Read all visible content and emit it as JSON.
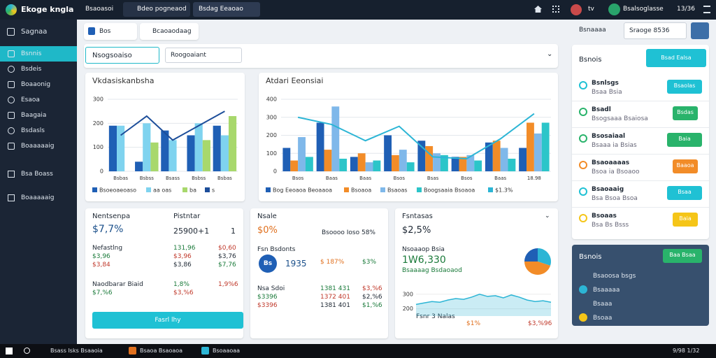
{
  "header": {
    "logo": "Ekoge kngla",
    "menu": "Bsaoasoi",
    "tabs": [
      "Bdeo pogneaod",
      "Bsdag Eeaoao"
    ],
    "icon_text": "tv",
    "user": "Bsalsoglasse",
    "time": "13/36"
  },
  "sidebar": {
    "title": "Sagnaa",
    "items": [
      "Bsnnis",
      "Bsdeis",
      "Boaaonig",
      "Esaoa",
      "Baagaia",
      "Bsdasls",
      "Boaaaaaig"
    ],
    "sections": [
      "Bsa Boass",
      "Boaaaaaig"
    ]
  },
  "toolbar": {
    "tabs": [
      "Bos",
      "Bcaoaodaag"
    ],
    "select": "Nsogsoaiso",
    "filter": "Roogoaiant"
  },
  "charts": [
    {
      "type": "bar",
      "title": "Vkdasiskanbsha",
      "categories": [
        "Bsbas",
        "Bsbss",
        "Bsass",
        "Bsbss",
        "Bsbas"
      ],
      "ylim": [
        0,
        300
      ],
      "yticks": [
        0,
        100,
        200,
        300
      ],
      "grid": true,
      "series": [
        {
          "name": "Bsoeoaeoaso",
          "color": "#1f5fb5",
          "values": [
            190,
            40,
            170,
            150,
            190
          ]
        },
        {
          "name": "aa oas",
          "color": "#7fd3ef",
          "values": [
            190,
            200,
            130,
            200,
            150
          ]
        },
        {
          "name": "ba",
          "color": "#a8d86c",
          "values": [
            null,
            120,
            null,
            130,
            230
          ]
        },
        {
          "name": "s",
          "type": "line",
          "color": "#1d4e9a",
          "values": [
            150,
            230,
            130,
            190,
            250
          ]
        }
      ]
    },
    {
      "type": "bar",
      "title": "Atdari Eeonsiai",
      "categories": [
        "Bsos",
        "Baas",
        "Baas",
        "Bsos",
        "Bsas",
        "Bsos",
        "Baas",
        "18.98"
      ],
      "ylim": [
        0,
        400
      ],
      "yticks": [
        0,
        100,
        200,
        300,
        400
      ],
      "grid": true,
      "series": [
        {
          "name": "Bog Eeoaoa Beoaaoa",
          "color": "#1f5fb5",
          "values": [
            130,
            270,
            80,
            200,
            170,
            80,
            160,
            130
          ]
        },
        {
          "name": "Bsoaoa",
          "color": "#f28c28",
          "values": [
            60,
            120,
            100,
            90,
            140,
            80,
            170,
            270
          ]
        },
        {
          "name": "Bsaoas",
          "color": "#7fb8ea",
          "values": [
            190,
            360,
            50,
            120,
            100,
            90,
            130,
            210
          ]
        },
        {
          "name": "Boogsaaia Bsoaoa",
          "color": "#2cc5c9",
          "values": [
            80,
            70,
            60,
            50,
            90,
            60,
            70,
            270
          ]
        },
        {
          "name": "$1.3%",
          "type": "line",
          "color": "#2cb5d5",
          "values": [
            300,
            260,
            170,
            250,
            80,
            70,
            180,
            320
          ]
        }
      ]
    }
  ],
  "cards": [
    {
      "title": "Nentsenpa",
      "value": "$7,7%",
      "title2": "Pistntar",
      "value2": "25900+1",
      "mark": "1",
      "blocks": [
        [
          [
            "Nefastlng",
            "$3,96",
            "$3,84"
          ],
          [
            "131,96",
            "$3,96",
            "$3,86"
          ],
          [
            "$0,60",
            "$3,76",
            "$7,76"
          ]
        ],
        [
          [
            "Naodbarar Biaid",
            "$7,%6"
          ],
          [
            "1,8%",
            "$3,%6"
          ],
          [
            "1,9%6"
          ]
        ]
      ],
      "button": "Fasrl lhy"
    },
    {
      "title": "Nsale",
      "value": "$0%",
      "side": "Bsoooo Ioso 58%",
      "section": "Fsn Bsdonts",
      "badge": "Bs",
      "blocks": [
        [
          [
            "1935"
          ],
          [
            "$ 187%"
          ],
          [
            "$3%"
          ]
        ],
        [
          [
            "Nsa Sdoi",
            "$3396",
            "$3396"
          ],
          [
            "1381 431",
            "1372 401",
            "1381 401"
          ],
          [
            "$3,%6",
            "$2,%6",
            "$1,%6"
          ]
        ]
      ]
    },
    {
      "title": "Fsntasas",
      "value": "$2,5%",
      "sub": "Nsoaaop Bsia",
      "big": "1W6,330",
      "sub2": "Bsaaaag Bsdaoaod",
      "footer": [
        "Fsnr 3 Nalas",
        "$1%",
        "$3,%96"
      ],
      "spark": {
        "type": "area",
        "color": "#2cb5d5",
        "values": [
          230,
          240,
          250,
          245,
          260,
          270,
          265,
          280,
          300,
          285,
          290,
          275,
          295,
          280,
          260,
          250,
          255,
          245
        ],
        "ylim": [
          150,
          400
        ],
        "yticks": [
          200,
          300
        ]
      },
      "pie": {
        "type": "pie",
        "values": [
          30,
          45,
          25
        ],
        "colors": [
          "#2cb5d5",
          "#f28c28",
          "#1f5fb5"
        ]
      }
    }
  ],
  "right": {
    "dropdown": "Bsnaaaa",
    "search": "Sraoge 8536",
    "panel_title": "Bsnois",
    "panel_button": "Bsad Ealsa",
    "items": [
      {
        "title": "Bsnlsgs",
        "sub": "Bsaa Bsia",
        "button": "Bsaolas",
        "color": "#1fc1d4"
      },
      {
        "title": "Bsadl",
        "sub": "Bsogsaaa Bsaiosa",
        "button": "Bsdas",
        "color": "#29b36b"
      },
      {
        "title": "Bsosaiaal",
        "sub": "Bsaaa ia Bsias",
        "button": "Baia",
        "color": "#29b36b"
      },
      {
        "title": "Bsaoaaaas",
        "sub": "Bsoa ia Bsoaoo",
        "button": "Baaoa",
        "color": "#f28c28"
      },
      {
        "title": "Bsaoaaig",
        "sub": "Bsa Bsoa Bsoa",
        "button": "Bsaa",
        "color": "#1fc1d4"
      },
      {
        "title": "Bsoaas",
        "sub": "Bsa Bs Bsss",
        "button": "Baia",
        "color": "#f5c518"
      }
    ],
    "dark": {
      "title": "Bsnois",
      "button": "Baa Bsaa",
      "items": [
        "Bsaoosa bsgs",
        "Bsaaaaa",
        "Bsaaa",
        "Bsoaa"
      ]
    }
  },
  "taskbar": {
    "items": [
      "Bsass Isks Bsaaoia",
      "Bsaoa Bsaoaoa",
      "Bsoaaoaa"
    ],
    "time": "9/98 1/32"
  }
}
